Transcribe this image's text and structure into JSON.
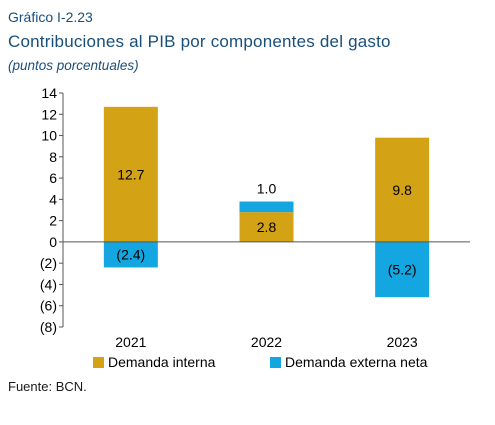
{
  "header": {
    "label": "Gráfico I-2.23",
    "title": "Contribuciones al PIB por componentes del gasto",
    "subtitle": "(puntos porcentuales)"
  },
  "footer": {
    "source": "Fuente: BCN."
  },
  "colors": {
    "demanda_interna": "#d4a215",
    "demanda_externa_neta": "#13a6e0",
    "axis": "#555555",
    "text": "#000000"
  },
  "chart_data": {
    "type": "bar",
    "stacked": true,
    "categories": [
      "2021",
      "2022",
      "2023"
    ],
    "series": [
      {
        "name": "Demanda interna",
        "values": [
          12.7,
          2.8,
          9.8
        ],
        "labels": [
          "12.7",
          "2.8",
          "9.8"
        ]
      },
      {
        "name": "Demanda externa neta",
        "values": [
          -2.4,
          1.0,
          -5.2
        ],
        "labels": [
          "(2.4)",
          "1.0",
          "(5.2)"
        ]
      }
    ],
    "ylim": [
      -8,
      14
    ],
    "yticks": [
      14,
      12,
      10,
      8,
      6,
      4,
      2,
      0,
      -2,
      -4,
      -6,
      -8
    ],
    "ytick_labels": [
      "14",
      "12",
      "10",
      "8",
      "6",
      "4",
      "2",
      "0",
      "(2)",
      "(4)",
      "(6)",
      "(8)"
    ],
    "legend_position": "bottom",
    "grid": false
  }
}
